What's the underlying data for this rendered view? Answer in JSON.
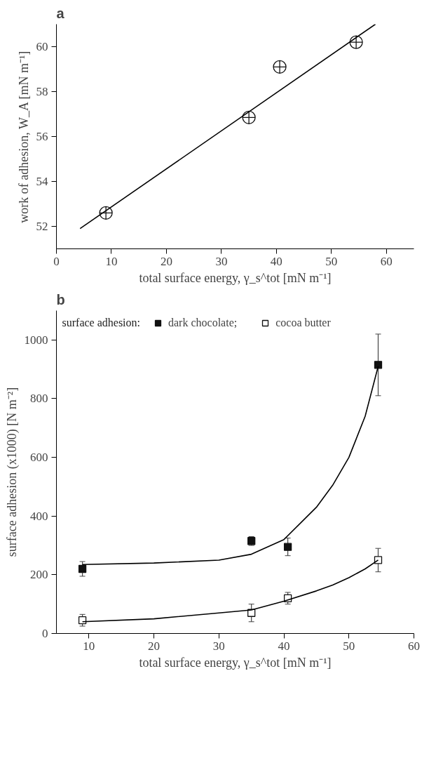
{
  "chart_data": [
    {
      "type": "scatter",
      "title": "a",
      "xlabel": "total surface energy, γ_s^tot [mN m⁻¹]",
      "ylabel": "work of adhesion, W_A [mN m⁻¹]",
      "x": [
        9,
        35,
        40.6,
        54.5
      ],
      "marker": "circle",
      "grid": false,
      "legend": false,
      "xlim": [
        0,
        65
      ],
      "xticks": [
        0,
        10,
        20,
        30,
        40,
        50,
        60
      ],
      "ylim": [
        51,
        61
      ],
      "yticks": [
        52,
        54,
        56,
        58,
        60
      ],
      "series": [
        {
          "color": "#ffffff",
          "values": [
            52.6,
            56.85,
            59.1,
            60.2
          ]
        },
        {
          "type": "line",
          "marker": "none",
          "color": "#000000",
          "x": [
            4.3,
            58
          ],
          "values": [
            51.9,
            61.0
          ]
        }
      ]
    },
    {
      "type": "scatter",
      "title": "b",
      "legend_title": "surface adhesion:",
      "xlabel": "total surface energy, γ_s^tot [mN m⁻¹]",
      "ylabel": "surface adhesion (x1000) [N m⁻²]",
      "x": [
        9,
        35,
        40.6,
        54.5
      ],
      "marker": "square",
      "grid": false,
      "legend": "top",
      "xlim": [
        5,
        60
      ],
      "xticks": [
        10,
        20,
        30,
        40,
        50,
        60
      ],
      "ylim": [
        0,
        1100
      ],
      "yticks": [
        0,
        200,
        400,
        600,
        800,
        1000
      ],
      "series": [
        {
          "name": "dark chocolate;",
          "color": "#111111",
          "values": [
            220,
            315,
            295,
            915
          ],
          "errors": [
            25,
            15,
            30,
            105
          ]
        },
        {
          "name": "cocoa butter",
          "color": "#ffffff",
          "values": [
            45,
            70,
            120,
            250
          ],
          "errors": [
            20,
            30,
            20,
            40
          ]
        },
        {
          "type": "line",
          "marker": "none",
          "color": "#000000",
          "x": [
            9,
            20,
            30,
            35,
            40,
            45,
            47.5,
            50,
            52.5,
            54.5
          ],
          "values": [
            235,
            240,
            250,
            270,
            320,
            430,
            505,
            600,
            740,
            910
          ]
        },
        {
          "type": "line",
          "marker": "none",
          "color": "#000000",
          "x": [
            9,
            20,
            30,
            35,
            40,
            45,
            47.5,
            50,
            52.5,
            54.5
          ],
          "values": [
            40,
            50,
            70,
            80,
            110,
            145,
            165,
            190,
            220,
            250
          ]
        }
      ]
    }
  ]
}
